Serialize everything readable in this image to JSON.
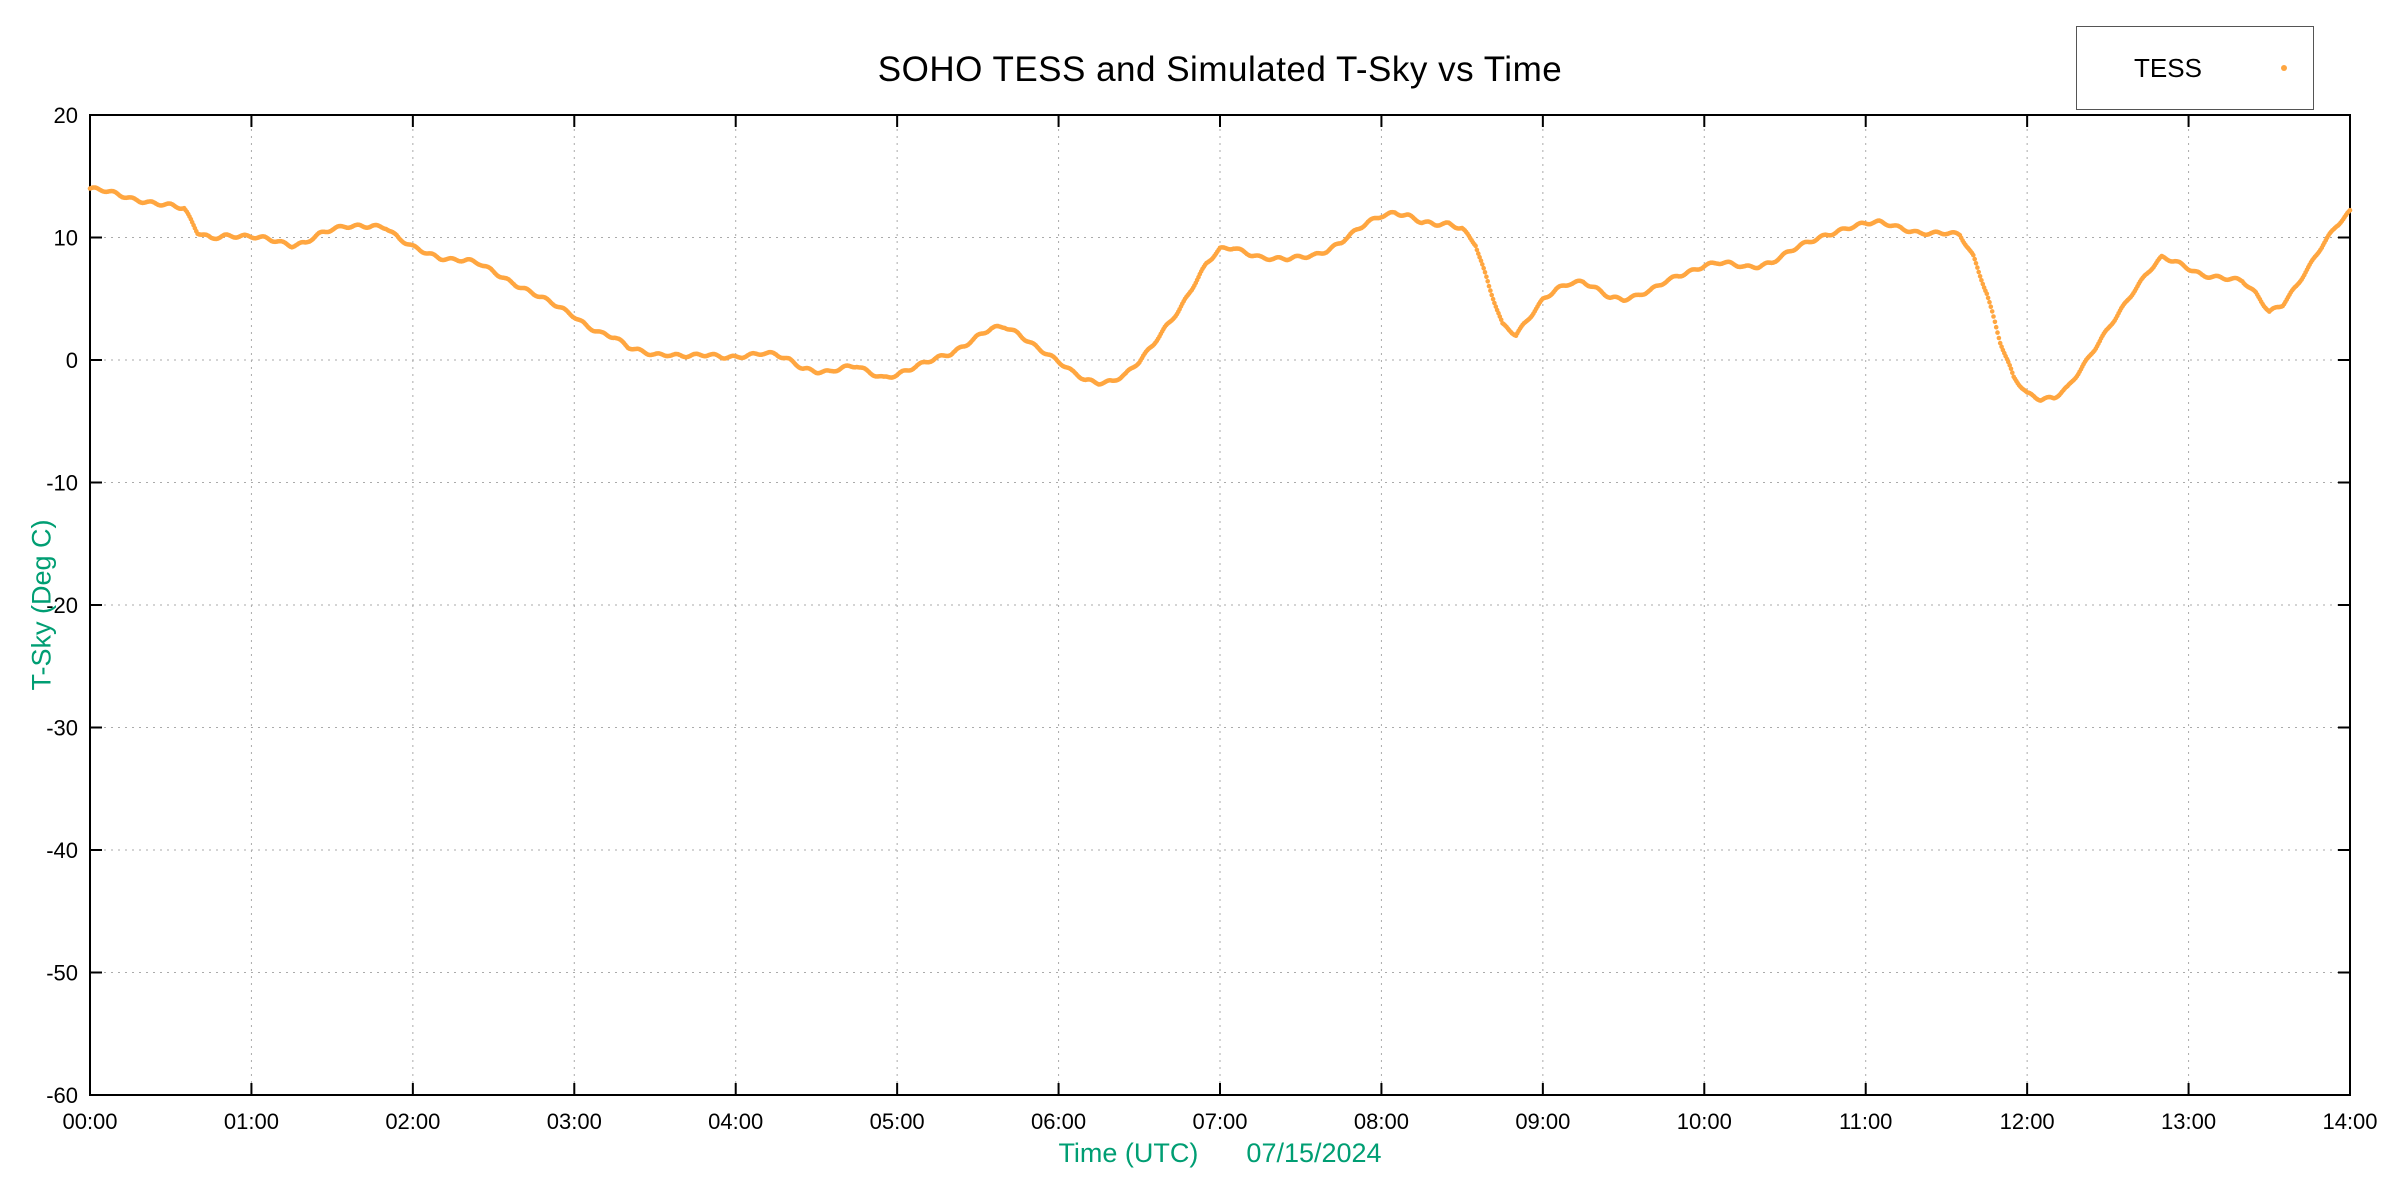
{
  "chart_data": {
    "type": "scatter",
    "title": "SOHO TESS and Simulated T-Sky vs Time",
    "xlabel": "Time (UTC)",
    "xlabel_date": "07/15/2024",
    "ylabel": "T-Sky (Deg C)",
    "xlim_minutes": [
      0,
      840
    ],
    "ylim": [
      -60,
      20
    ],
    "grid": true,
    "legend_position": "top-right-outside",
    "x_tick_labels": [
      "00:00",
      "01:00",
      "02:00",
      "03:00",
      "04:00",
      "05:00",
      "06:00",
      "07:00",
      "08:00",
      "09:00",
      "10:00",
      "11:00",
      "12:00",
      "13:00",
      "14:00"
    ],
    "x_tick_minutes": [
      0,
      60,
      120,
      180,
      240,
      300,
      360,
      420,
      480,
      540,
      600,
      660,
      720,
      780,
      840
    ],
    "y_ticks": [
      20,
      10,
      0,
      -10,
      -20,
      -30,
      -40,
      -50,
      -60
    ],
    "colors": {
      "points": "#FFA640",
      "axis_label_green": "#009E73",
      "grid": "#aaaaaa",
      "border": "#000000"
    },
    "series": [
      {
        "name": "TESS",
        "marker": "dot",
        "color": "#FFA640",
        "x_step_minutes": 5,
        "values": [
          14.0,
          13.8,
          13.5,
          13.2,
          13.0,
          12.8,
          12.6,
          12.3,
          10.4,
          10.0,
          10.2,
          10.1,
          10.0,
          9.9,
          9.7,
          9.4,
          9.6,
          10.2,
          10.6,
          10.9,
          11.0,
          11.0,
          10.8,
          9.8,
          9.2,
          8.8,
          8.4,
          8.2,
          8.1,
          7.8,
          7.2,
          6.6,
          6.0,
          5.4,
          4.8,
          4.2,
          3.6,
          2.8,
          2.2,
          1.8,
          1.0,
          0.7,
          0.5,
          0.5,
          0.3,
          0.3,
          0.4,
          0.3,
          0.3,
          0.4,
          0.5,
          0.4,
          0.0,
          -0.6,
          -0.9,
          -1.0,
          -0.7,
          -0.5,
          -1.0,
          -1.4,
          -1.2,
          -0.8,
          -0.3,
          0.2,
          0.6,
          1.2,
          1.9,
          2.5,
          2.7,
          2.2,
          1.4,
          0.6,
          -0.2,
          -1.0,
          -1.6,
          -1.8,
          -1.7,
          -1.2,
          -0.2,
          1.2,
          2.8,
          4.2,
          6.0,
          7.8,
          9.0,
          9.2,
          8.8,
          8.4,
          8.2,
          8.2,
          8.4,
          8.6,
          9.0,
          9.6,
          10.4,
          11.2,
          11.8,
          12.1,
          11.8,
          11.2,
          11.0,
          11.1,
          10.8,
          9.5,
          6.0,
          2.8,
          2.0,
          3.5,
          5.0,
          5.8,
          6.2,
          6.3,
          5.8,
          5.2,
          5.0,
          5.2,
          5.6,
          6.3,
          6.9,
          7.3,
          7.7,
          7.9,
          7.8,
          7.6,
          7.7,
          8.0,
          8.6,
          9.2,
          9.7,
          10.2,
          10.6,
          10.9,
          11.1,
          11.2,
          11.0,
          10.7,
          10.4,
          10.3,
          10.3,
          10.2,
          8.5,
          5.5,
          1.5,
          -1.5,
          -2.8,
          -3.2,
          -3.0,
          -2.2,
          -0.8,
          0.8,
          2.5,
          4.2,
          5.8,
          7.2,
          8.3,
          8.0,
          7.5,
          7.0,
          6.8,
          6.6,
          6.4,
          5.4,
          4.0,
          4.6,
          6.0,
          7.6,
          9.4,
          11.0,
          12.2
        ]
      }
    ]
  },
  "legend": {
    "label": "TESS"
  }
}
